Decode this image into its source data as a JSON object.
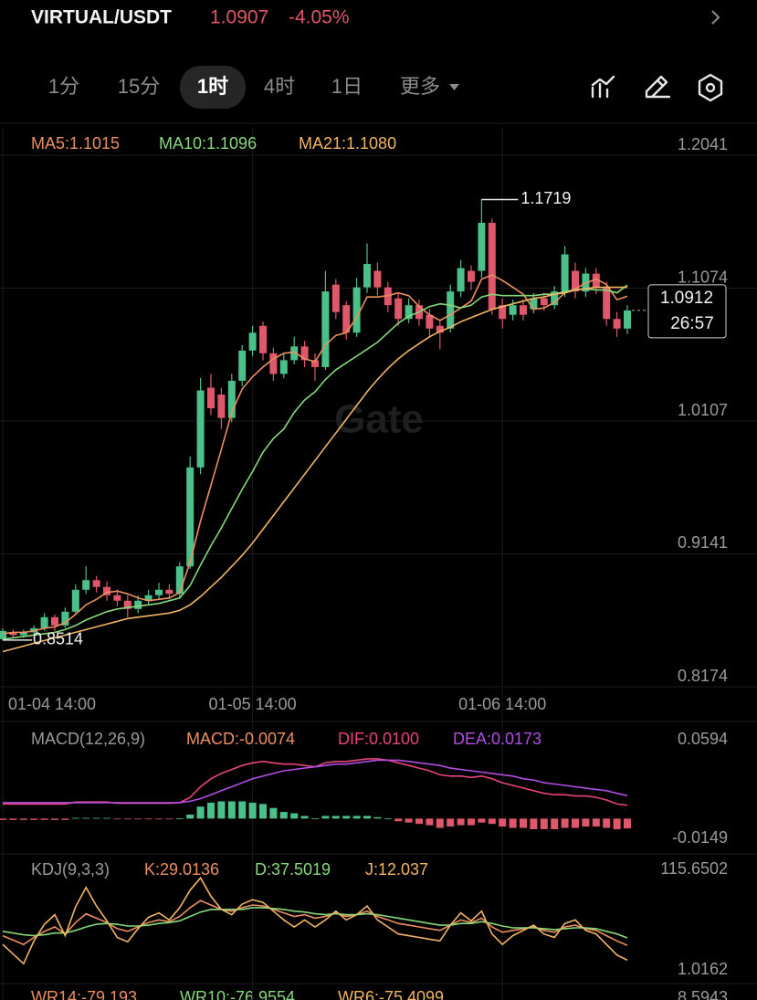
{
  "header": {
    "pair": "VIRTUAL/USDT",
    "price": 1.0907,
    "change": "-4.05%"
  },
  "tabs": [
    "1分",
    "15分",
    "1时",
    "4时",
    "1日",
    "更多"
  ],
  "selected_tab": 2,
  "watermark": "Gate",
  "countdown": "26:57",
  "wr_panel": {
    "labels": [
      "WR14:-79.193",
      "WR10:-76.9554",
      "WR6:-75.4099"
    ],
    "top_tick": "8.5943"
  },
  "chart_data": [
    {
      "type": "candlestick",
      "categories": [
        "01-04 14:00",
        null,
        null,
        null,
        null,
        null,
        null,
        null,
        null,
        null,
        null,
        null,
        null,
        null,
        null,
        null,
        null,
        null,
        null,
        null,
        null,
        null,
        null,
        null,
        "01-05 14:00",
        null,
        null,
        null,
        null,
        null,
        null,
        null,
        null,
        null,
        null,
        null,
        null,
        null,
        null,
        null,
        null,
        null,
        null,
        null,
        null,
        null,
        null,
        null,
        "01-06 14:00",
        null,
        null,
        null,
        null,
        null,
        null,
        null,
        null,
        null,
        null,
        null,
        null
      ],
      "open": [
        0.852,
        0.857,
        0.855,
        0.857,
        0.86,
        0.868,
        0.862,
        0.872,
        0.888,
        0.895,
        0.89,
        0.884,
        0.88,
        0.874,
        0.88,
        0.884,
        0.888,
        0.885,
        0.905,
        0.977,
        1.035,
        1.03,
        1.013,
        1.04,
        1.062,
        1.08,
        1.06,
        1.045,
        1.055,
        1.065,
        1.055,
        1.05,
        1.11,
        1.095,
        1.075,
        1.108,
        1.12,
        1.108,
        1.1,
        1.085,
        1.095,
        1.088,
        1.08,
        1.078,
        1.105,
        1.12,
        1.12,
        1.155,
        1.095,
        1.088,
        1.095,
        1.092,
        1.1,
        1.095,
        1.105,
        1.12,
        1.105,
        1.118,
        1.108,
        1.085,
        1.078
      ],
      "high": [
        0.86,
        0.859,
        0.859,
        0.862,
        0.871,
        0.87,
        0.875,
        0.892,
        0.905,
        0.898,
        0.894,
        0.888,
        0.884,
        0.884,
        0.888,
        0.893,
        0.892,
        0.908,
        0.985,
        1.042,
        1.045,
        1.035,
        1.045,
        1.066,
        1.08,
        1.083,
        1.064,
        1.06,
        1.072,
        1.069,
        1.06,
        1.12,
        1.114,
        1.098,
        1.115,
        1.14,
        1.126,
        1.112,
        1.104,
        1.1,
        1.099,
        1.092,
        1.084,
        1.11,
        1.128,
        1.124,
        1.1719,
        1.158,
        1.1,
        1.099,
        1.099,
        1.104,
        1.104,
        1.109,
        1.138,
        1.126,
        1.122,
        1.122,
        1.112,
        1.09,
        1.095
      ],
      "low": [
        0.8514,
        0.853,
        0.853,
        0.855,
        0.858,
        0.858,
        0.86,
        0.87,
        0.885,
        0.886,
        0.88,
        0.876,
        0.868,
        0.871,
        0.877,
        0.881,
        0.881,
        0.882,
        0.903,
        0.972,
        1.015,
        1.005,
        1.01,
        1.036,
        1.058,
        1.055,
        1.04,
        1.042,
        1.052,
        1.05,
        1.04,
        1.048,
        1.085,
        1.07,
        1.072,
        1.104,
        1.102,
        1.09,
        1.08,
        1.082,
        1.08,
        1.072,
        1.063,
        1.075,
        1.101,
        1.106,
        1.115,
        1.088,
        1.078,
        1.084,
        1.084,
        1.089,
        1.091,
        1.092,
        1.101,
        1.1,
        1.101,
        1.103,
        1.08,
        1.072,
        1.074
      ],
      "close": [
        0.858,
        0.855,
        0.857,
        0.86,
        0.868,
        0.862,
        0.872,
        0.888,
        0.895,
        0.89,
        0.884,
        0.88,
        0.874,
        0.88,
        0.884,
        0.888,
        0.885,
        0.905,
        0.977,
        1.033,
        1.02,
        1.013,
        1.04,
        1.062,
        1.075,
        1.06,
        1.045,
        1.055,
        1.065,
        1.055,
        1.05,
        1.105,
        1.09,
        1.075,
        1.108,
        1.125,
        1.108,
        1.095,
        1.085,
        1.095,
        1.085,
        1.078,
        1.075,
        1.105,
        1.122,
        1.112,
        1.155,
        1.092,
        1.085,
        1.095,
        1.088,
        1.1,
        1.095,
        1.105,
        1.132,
        1.105,
        1.118,
        1.108,
        1.085,
        1.078,
        1.0912
      ],
      "up_color": "#4cc08a",
      "down_color": "#e0566b",
      "series": [
        {
          "label": "MA5:1.1015",
          "color": "#ec8f60",
          "values": [
            0.856,
            0.857,
            0.857,
            0.858,
            0.86,
            0.861,
            0.864,
            0.87,
            0.877,
            0.881,
            0.886,
            0.887,
            0.885,
            0.882,
            0.88,
            0.881,
            0.882,
            0.886,
            0.908,
            0.938,
            0.964,
            0.99,
            1.017,
            1.034,
            1.043,
            1.05,
            1.056,
            1.06,
            1.061,
            1.056,
            1.054,
            1.066,
            1.073,
            1.075,
            1.086,
            1.101,
            1.101,
            1.102,
            1.104,
            1.102,
            1.094,
            1.088,
            1.084,
            1.088,
            1.093,
            1.098,
            1.114,
            1.117,
            1.113,
            1.108,
            1.103,
            1.092,
            1.093,
            1.097,
            1.104,
            1.107,
            1.111,
            1.114,
            1.11,
            1.099,
            1.1015
          ]
        },
        {
          "label": "MA10:1.1096",
          "color": "#86d97a",
          "values": [
            0.852,
            0.853,
            0.854,
            0.855,
            0.856,
            0.857,
            0.859,
            0.862,
            0.866,
            0.869,
            0.872,
            0.874,
            0.875,
            0.876,
            0.877,
            0.878,
            0.88,
            0.882,
            0.891,
            0.906,
            0.92,
            0.933,
            0.947,
            0.961,
            0.974,
            0.988,
            0.998,
            1.005,
            1.017,
            1.026,
            1.032,
            1.041,
            1.048,
            1.053,
            1.058,
            1.063,
            1.068,
            1.075,
            1.082,
            1.087,
            1.09,
            1.094,
            1.096,
            1.095,
            1.093,
            1.095,
            1.101,
            1.103,
            1.102,
            1.102,
            1.102,
            1.102,
            1.103,
            1.103,
            1.105,
            1.106,
            1.107,
            1.106,
            1.106,
            1.104,
            1.1096
          ]
        },
        {
          "label": "MA21:1.1080",
          "color": "#f2b563",
          "values": [
            0.843,
            0.845,
            0.847,
            0.849,
            0.851,
            0.853,
            0.855,
            0.857,
            0.859,
            0.861,
            0.863,
            0.865,
            0.867,
            0.868,
            0.869,
            0.87,
            0.871,
            0.873,
            0.877,
            0.883,
            0.89,
            0.897,
            0.905,
            0.913,
            0.922,
            0.932,
            0.942,
            0.952,
            0.962,
            0.972,
            0.982,
            0.992,
            1.002,
            1.012,
            1.022,
            1.032,
            1.041,
            1.049,
            1.056,
            1.062,
            1.067,
            1.072,
            1.076,
            1.079,
            1.083,
            1.086,
            1.089,
            1.092,
            1.094,
            1.096,
            1.098,
            1.1,
            1.101,
            1.103,
            1.104,
            1.106,
            1.107,
            1.108,
            1.108,
            1.108,
            1.108
          ]
        }
      ],
      "ylim": [
        0.8174,
        1.2041
      ],
      "yticks": [
        0.8174,
        0.9141,
        1.0107,
        1.1074,
        1.2041
      ],
      "grid": true
    },
    {
      "type": "macd",
      "title": "MACD(12,26,9)",
      "histogram": {
        "label": "MACD:-0.0074",
        "label_color": "#ec8f60",
        "up_color": "#4cc08a",
        "down_color": "#e0566b",
        "values": [
          -0.001,
          -0.001,
          -0.001,
          -0.001,
          -0.001,
          -0.001,
          -0.001,
          0.0005,
          0.0005,
          0.0005,
          0.0005,
          -0.0005,
          -0.0005,
          -0.0005,
          -0.0005,
          -0.0005,
          -0.0005,
          0.0002,
          0.003,
          0.009,
          0.012,
          0.013,
          0.013,
          0.013,
          0.012,
          0.011,
          0.008,
          0.005,
          0.004,
          0.002,
          0.0002,
          0.002,
          0.002,
          0.002,
          0.002,
          0.002,
          0.001,
          0.0002,
          -0.002,
          -0.003,
          -0.004,
          -0.005,
          -0.007,
          -0.006,
          -0.005,
          -0.005,
          -0.003,
          -0.004,
          -0.006,
          -0.007,
          -0.007,
          -0.008,
          -0.008,
          -0.008,
          -0.007,
          -0.007,
          -0.006,
          -0.006,
          -0.007,
          -0.008,
          -0.0074
        ]
      },
      "series": [
        {
          "label": "DIF:0.0100",
          "color": "#e5457a",
          "values": [
            0.011,
            0.011,
            0.011,
            0.011,
            0.011,
            0.011,
            0.011,
            0.0125,
            0.0125,
            0.0125,
            0.0125,
            0.0115,
            0.0115,
            0.0115,
            0.0115,
            0.0115,
            0.0115,
            0.012,
            0.016,
            0.024,
            0.03,
            0.034,
            0.037,
            0.04,
            0.042,
            0.043,
            0.042,
            0.041,
            0.041,
            0.04,
            0.039,
            0.042,
            0.043,
            0.043,
            0.044,
            0.045,
            0.045,
            0.044,
            0.042,
            0.04,
            0.038,
            0.036,
            0.033,
            0.032,
            0.032,
            0.031,
            0.032,
            0.03,
            0.027,
            0.025,
            0.023,
            0.021,
            0.019,
            0.018,
            0.018,
            0.017,
            0.017,
            0.016,
            0.014,
            0.011,
            0.01
          ]
        },
        {
          "label": "DEA:0.0173",
          "color": "#b04ee0",
          "values": [
            0.012,
            0.012,
            0.012,
            0.012,
            0.012,
            0.012,
            0.012,
            0.012,
            0.012,
            0.012,
            0.012,
            0.012,
            0.012,
            0.012,
            0.012,
            0.012,
            0.012,
            0.012,
            0.013,
            0.015,
            0.018,
            0.021,
            0.024,
            0.027,
            0.03,
            0.032,
            0.034,
            0.036,
            0.037,
            0.038,
            0.039,
            0.04,
            0.041,
            0.041,
            0.042,
            0.043,
            0.044,
            0.044,
            0.044,
            0.043,
            0.042,
            0.041,
            0.04,
            0.038,
            0.037,
            0.036,
            0.035,
            0.034,
            0.033,
            0.032,
            0.03,
            0.029,
            0.027,
            0.026,
            0.025,
            0.024,
            0.023,
            0.022,
            0.021,
            0.019,
            0.0173
          ]
        }
      ],
      "ylim": [
        -0.0149,
        0.0594
      ],
      "yticks": [
        -0.0149,
        0.0594
      ],
      "grid": false
    },
    {
      "type": "line",
      "title": "KDJ(9,3,3)",
      "series": [
        {
          "label": "K:29.0136",
          "color": "#ec8f60",
          "values": [
            40,
            35,
            30,
            38,
            45,
            50,
            42,
            55,
            65,
            60,
            55,
            48,
            45,
            50,
            55,
            58,
            56,
            62,
            72,
            80,
            75,
            70,
            68,
            72,
            75,
            74,
            70,
            66,
            62,
            64,
            60,
            62,
            66,
            62,
            64,
            68,
            62,
            58,
            54,
            52,
            50,
            48,
            46,
            52,
            58,
            55,
            60,
            50,
            44,
            46,
            48,
            50,
            46,
            44,
            50,
            52,
            48,
            46,
            40,
            34,
            29.0136
          ]
        },
        {
          "label": "D:37.5019",
          "color": "#86d97a",
          "values": [
            45,
            43,
            41,
            40,
            41,
            43,
            43,
            46,
            50,
            53,
            54,
            53,
            51,
            51,
            52,
            54,
            55,
            57,
            62,
            67,
            70,
            70,
            70,
            70,
            72,
            72,
            71,
            70,
            68,
            67,
            65,
            64,
            65,
            64,
            64,
            65,
            64,
            62,
            60,
            58,
            56,
            54,
            52,
            52,
            54,
            54,
            56,
            54,
            51,
            49,
            49,
            49,
            48,
            47,
            48,
            49,
            49,
            48,
            45,
            42,
            37.5019
          ]
        },
        {
          "label": "J:12.037",
          "color": "#f2b563",
          "values": [
            30,
            19,
            8,
            34,
            53,
            64,
            40,
            73,
            95,
            74,
            57,
            38,
            33,
            48,
            61,
            66,
            58,
            72,
            92,
            106,
            85,
            70,
            64,
            76,
            81,
            78,
            68,
            58,
            50,
            58,
            50,
            58,
            68,
            58,
            64,
            74,
            58,
            50,
            42,
            40,
            38,
            36,
            34,
            52,
            66,
            57,
            68,
            42,
            30,
            40,
            46,
            52,
            42,
            38,
            54,
            58,
            46,
            42,
            30,
            18,
            12.037
          ]
        }
      ],
      "ylim": [
        1.0162,
        115.6502
      ],
      "yticks": [
        1.0162,
        115.6502
      ],
      "grid": false
    }
  ]
}
